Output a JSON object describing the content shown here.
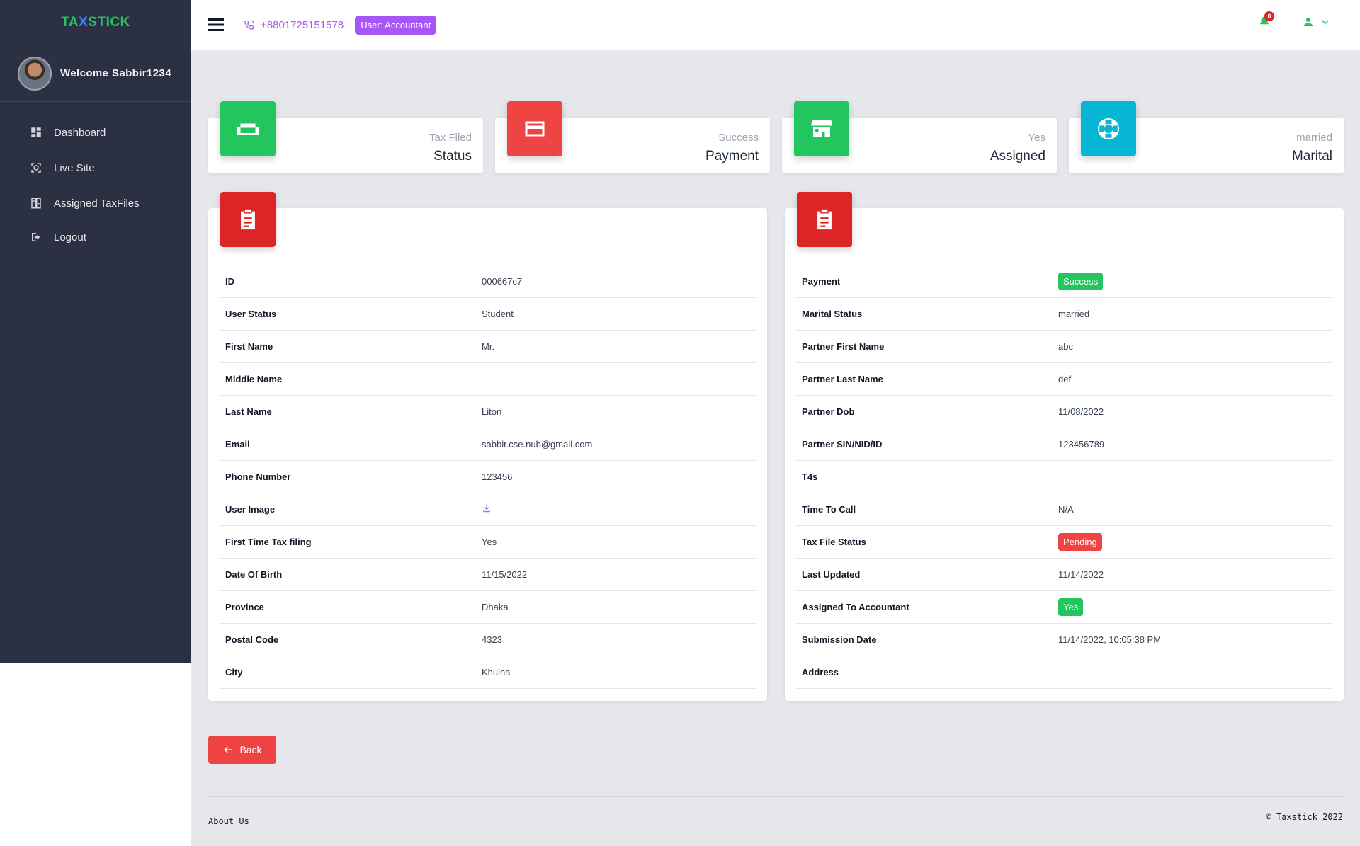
{
  "brand": {
    "part1": "TA",
    "part2": "X",
    "part3": "STICK"
  },
  "sidebar": {
    "welcome": "Welcome Sabbir1234",
    "items": [
      {
        "label": "Dashboard",
        "icon": "dashboard-icon"
      },
      {
        "label": "Live Site",
        "icon": "live-site-icon"
      },
      {
        "label": "Assigned TaxFiles",
        "icon": "assigned-taxfiles-icon"
      },
      {
        "label": "Logout",
        "icon": "logout-icon"
      }
    ]
  },
  "topbar": {
    "phone": "+8801725151578",
    "user_badge": "User:  Accountant",
    "notification_count": "0"
  },
  "stats": [
    {
      "small": "Tax Filed",
      "big": "Status",
      "color": "#22c55e",
      "icon": "sofa-icon"
    },
    {
      "small": "Success",
      "big": "Payment",
      "color": "#ef4444",
      "icon": "credit-card-icon"
    },
    {
      "small": "Yes",
      "big": "Assigned",
      "color": "#22c55e",
      "icon": "store-icon"
    },
    {
      "small": "married",
      "big": "Marital",
      "color": "#06b6d4",
      "icon": "lifebuoy-icon"
    }
  ],
  "left_table": [
    {
      "label": "ID",
      "value": "000667c7"
    },
    {
      "label": "User Status",
      "value": "Student"
    },
    {
      "label": "First Name",
      "value": "Mr."
    },
    {
      "label": "Middle Name",
      "value": ""
    },
    {
      "label": "Last Name",
      "value": "Liton"
    },
    {
      "label": "Email",
      "value": "sabbir.cse.nub@gmail.com"
    },
    {
      "label": "Phone Number",
      "value": "123456"
    },
    {
      "label": "User Image",
      "value": ""
    },
    {
      "label": "First Time Tax filing",
      "value": "Yes"
    },
    {
      "label": "Date Of Birth",
      "value": "11/15/2022"
    },
    {
      "label": "Province",
      "value": "Dhaka"
    },
    {
      "label": "Postal Code",
      "value": "4323"
    },
    {
      "label": "City",
      "value": "Khulna"
    }
  ],
  "right_table": [
    {
      "label": "Payment",
      "value": "Success"
    },
    {
      "label": "Marital Status",
      "value": "married"
    },
    {
      "label": "Partner First Name",
      "value": "abc"
    },
    {
      "label": "Partner Last Name",
      "value": "def"
    },
    {
      "label": "Partner Dob",
      "value": "11/08/2022"
    },
    {
      "label": "Partner SIN/NID/ID",
      "value": "123456789"
    },
    {
      "label": "T4s",
      "value": ""
    },
    {
      "label": "Time To Call",
      "value": "N/A"
    },
    {
      "label": "Tax File Status",
      "value": "Pending"
    },
    {
      "label": "Last Updated",
      "value": "11/14/2022"
    },
    {
      "label": "Assigned To Accountant",
      "value": "Yes"
    },
    {
      "label": "Submission Date",
      "value": "11/14/2022, 10:05:38 PM"
    },
    {
      "label": "Address",
      "value": ""
    }
  ],
  "back_label": "Back",
  "footer": {
    "left": "About Us",
    "right": "© Taxstick 2022"
  }
}
